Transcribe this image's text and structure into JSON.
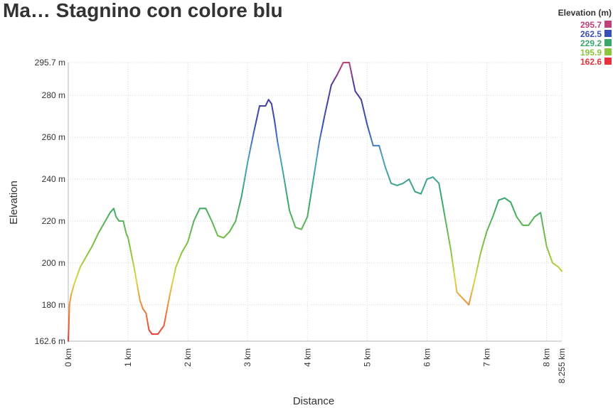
{
  "chart_data": {
    "type": "line",
    "title": "Ma… Stagnino con colore blu",
    "xlabel": "Distance",
    "ylabel": "Elevation",
    "xlim": [
      0,
      8.255
    ],
    "ylim": [
      162.6,
      295.7
    ],
    "y_ticks": [
      "162.6 m",
      "180 m",
      "200 m",
      "220 m",
      "240 m",
      "260 m",
      "280 m",
      "295.7 m"
    ],
    "y_tick_values": [
      162.6,
      180,
      200,
      220,
      240,
      260,
      280,
      295.7
    ],
    "x_ticks": [
      "0 km",
      "1 km",
      "2 km",
      "3 km",
      "4 km",
      "5 km",
      "6 km",
      "7 km",
      "8 km",
      "8.255 km"
    ],
    "x_tick_values": [
      0,
      1,
      2,
      3,
      4,
      5,
      6,
      7,
      8,
      8.255
    ],
    "legend": {
      "title": "Elevation (m)",
      "placement": "top-right",
      "entries": [
        {
          "label": "295.7",
          "color": "#c0407a"
        },
        {
          "label": "262.5",
          "color": "#3a4fb5"
        },
        {
          "label": "229.2",
          "color": "#39a86a"
        },
        {
          "label": "195.9",
          "color": "#8cc63f"
        },
        {
          "label": "162.6",
          "color": "#e8323b"
        }
      ]
    },
    "grid": true,
    "series": [
      {
        "x": [
          0,
          0.02,
          0.05,
          0.1,
          0.2,
          0.3,
          0.4,
          0.5,
          0.6,
          0.7,
          0.76,
          0.8,
          0.85,
          0.92,
          0.97,
          1.0,
          1.1,
          1.2,
          1.25,
          1.3,
          1.35,
          1.4,
          1.5,
          1.6,
          1.7,
          1.8,
          1.9,
          2.0,
          2.1,
          2.2,
          2.3,
          2.4,
          2.5,
          2.6,
          2.7,
          2.8,
          2.9,
          3.0,
          3.1,
          3.2,
          3.3,
          3.35,
          3.4,
          3.45,
          3.5,
          3.6,
          3.7,
          3.8,
          3.9,
          4.0,
          4.1,
          4.2,
          4.3,
          4.4,
          4.5,
          4.6,
          4.7,
          4.8,
          4.9,
          5.0,
          5.1,
          5.2,
          5.3,
          5.4,
          5.5,
          5.6,
          5.7,
          5.8,
          5.9,
          6.0,
          6.1,
          6.2,
          6.3,
          6.4,
          6.5,
          6.6,
          6.7,
          6.8,
          6.9,
          7.0,
          7.1,
          7.2,
          7.3,
          7.4,
          7.5,
          7.6,
          7.7,
          7.8,
          7.9,
          8.0,
          8.1,
          8.2,
          8.255
        ],
        "y": [
          162.6,
          180,
          185,
          190,
          198,
          203,
          208,
          214,
          219,
          224,
          226,
          222,
          220,
          220,
          214,
          212,
          198,
          182,
          178,
          176,
          168,
          166,
          166,
          170,
          185,
          198,
          205,
          210,
          220,
          226,
          226,
          220,
          213,
          212,
          215,
          220,
          232,
          248,
          262,
          275,
          275,
          278,
          276,
          268,
          258,
          242,
          225,
          217,
          216,
          222,
          240,
          258,
          272,
          285,
          290,
          295.7,
          295.7,
          282,
          278,
          266,
          256,
          256,
          246,
          238,
          237,
          238,
          240,
          234,
          233,
          240,
          241,
          238,
          222,
          206,
          186,
          183,
          180,
          192,
          205,
          215,
          222,
          230,
          231,
          229,
          222,
          218,
          218,
          222,
          224,
          208,
          200,
          198,
          196
        ]
      }
    ]
  }
}
